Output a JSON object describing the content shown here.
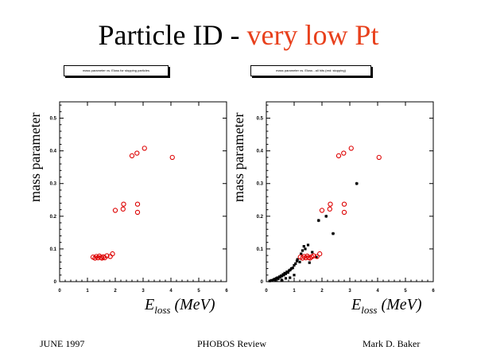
{
  "title": {
    "main": "Particle ID - ",
    "highlight": "very low Pt"
  },
  "footer": {
    "date": "JUNE 1997",
    "center": "PHOBOS Review",
    "author": "Mark D. Baker"
  },
  "colors": {
    "highlight": "#e8401c",
    "red_points": "#dd0000",
    "black_points": "#000000"
  },
  "chart_data": [
    {
      "type": "scatter",
      "banner": "mass parameter vs. Eloss for stopping particles",
      "ylabel": "mass parameter",
      "xlabel_base": "E",
      "xlabel_sub": "loss",
      "xlabel_unit": " (MeV)",
      "xlim": [
        0,
        6
      ],
      "ylim": [
        0,
        0.55
      ],
      "xticks": [
        "0",
        "1",
        "2",
        "3",
        "4",
        "5",
        "6"
      ],
      "yticks": [
        "0",
        "0.1",
        "0.2",
        "0.3",
        "0.4",
        "0.5"
      ],
      "series": [
        {
          "marker": "open-circle",
          "color": "#dd0000",
          "points": [
            [
              1.2,
              0.075
            ],
            [
              1.27,
              0.072
            ],
            [
              1.32,
              0.077
            ],
            [
              1.38,
              0.073
            ],
            [
              1.43,
              0.078
            ],
            [
              1.48,
              0.074
            ],
            [
              1.52,
              0.072
            ],
            [
              1.57,
              0.076
            ],
            [
              1.62,
              0.073
            ],
            [
              1.7,
              0.079
            ],
            [
              1.82,
              0.077
            ],
            [
              1.9,
              0.085
            ],
            [
              2.0,
              0.218
            ],
            [
              2.28,
              0.222
            ],
            [
              2.3,
              0.237
            ],
            [
              2.8,
              0.212
            ],
            [
              2.8,
              0.237
            ],
            [
              2.6,
              0.385
            ],
            [
              2.78,
              0.393
            ],
            [
              3.05,
              0.408
            ],
            [
              4.05,
              0.38
            ]
          ]
        }
      ]
    },
    {
      "type": "scatter",
      "banner": "mass parameter vs. Eloss - all hits (red: stopping)",
      "ylabel": "mass parameter",
      "xlabel_base": "E",
      "xlabel_sub": "loss",
      "xlabel_unit": " (MeV)",
      "xlim": [
        0,
        6
      ],
      "ylim": [
        0,
        0.55
      ],
      "xticks": [
        "0",
        "1",
        "2",
        "3",
        "4",
        "5",
        "6"
      ],
      "yticks": [
        "0",
        "0.1",
        "0.2",
        "0.3",
        "0.4",
        "0.5"
      ],
      "series": [
        {
          "marker": "filled-square",
          "color": "#000000",
          "points": [
            [
              0.12,
              0.002
            ],
            [
              0.18,
              0.004
            ],
            [
              0.22,
              0.003
            ],
            [
              0.26,
              0.006
            ],
            [
              0.3,
              0.008
            ],
            [
              0.33,
              0.005
            ],
            [
              0.36,
              0.01
            ],
            [
              0.4,
              0.012
            ],
            [
              0.43,
              0.009
            ],
            [
              0.47,
              0.015
            ],
            [
              0.5,
              0.014
            ],
            [
              0.53,
              0.018
            ],
            [
              0.56,
              0.017
            ],
            [
              0.6,
              0.022
            ],
            [
              0.63,
              0.02
            ],
            [
              0.66,
              0.026
            ],
            [
              0.7,
              0.024
            ],
            [
              0.74,
              0.03
            ],
            [
              0.78,
              0.028
            ],
            [
              0.82,
              0.034
            ],
            [
              0.86,
              0.036
            ],
            [
              0.9,
              0.04
            ],
            [
              0.95,
              0.042
            ],
            [
              1.0,
              0.05
            ],
            [
              1.05,
              0.055
            ],
            [
              1.1,
              0.063
            ],
            [
              1.12,
              0.068
            ],
            [
              1.2,
              0.06
            ],
            [
              1.25,
              0.085
            ],
            [
              1.3,
              0.095
            ],
            [
              1.35,
              0.108
            ],
            [
              1.4,
              0.1
            ],
            [
              1.5,
              0.112
            ],
            [
              1.55,
              0.058
            ],
            [
              1.65,
              0.09
            ],
            [
              1.8,
              0.075
            ],
            [
              0.55,
              0.005
            ],
            [
              0.7,
              0.01
            ],
            [
              0.85,
              0.012
            ],
            [
              1.0,
              0.02
            ]
          ]
        },
        {
          "marker": "star",
          "color": "#000000",
          "points": [
            [
              1.88,
              0.187
            ],
            [
              2.4,
              0.147
            ],
            [
              3.25,
              0.3
            ],
            [
              2.15,
              0.2
            ]
          ]
        },
        {
          "marker": "open-circle",
          "color": "#dd0000",
          "points": [
            [
              1.22,
              0.075
            ],
            [
              1.3,
              0.072
            ],
            [
              1.36,
              0.077
            ],
            [
              1.42,
              0.073
            ],
            [
              1.47,
              0.078
            ],
            [
              1.52,
              0.074
            ],
            [
              1.57,
              0.072
            ],
            [
              1.63,
              0.076
            ],
            [
              1.7,
              0.079
            ],
            [
              1.82,
              0.077
            ],
            [
              1.92,
              0.085
            ],
            [
              2.0,
              0.218
            ],
            [
              2.28,
              0.222
            ],
            [
              2.3,
              0.237
            ],
            [
              2.8,
              0.212
            ],
            [
              2.8,
              0.237
            ],
            [
              2.6,
              0.385
            ],
            [
              2.78,
              0.393
            ],
            [
              3.05,
              0.408
            ],
            [
              4.05,
              0.38
            ]
          ]
        }
      ]
    }
  ]
}
